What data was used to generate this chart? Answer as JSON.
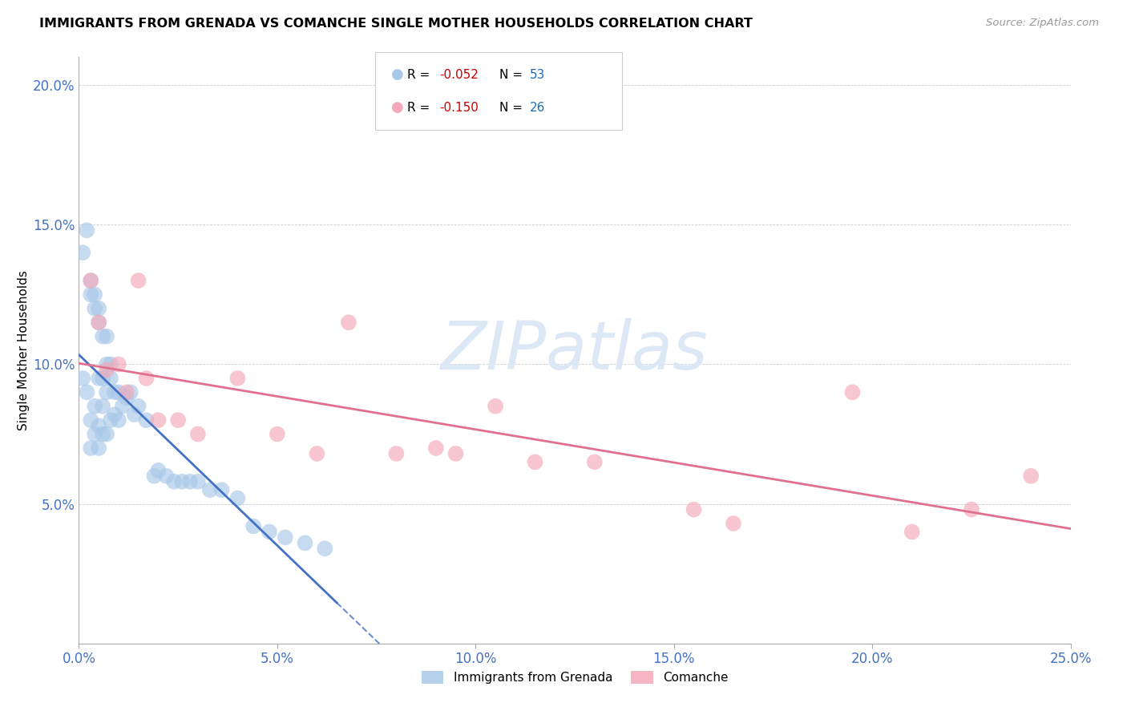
{
  "title": "IMMIGRANTS FROM GRENADA VS COMANCHE SINGLE MOTHER HOUSEHOLDS CORRELATION CHART",
  "source": "Source: ZipAtlas.com",
  "ylabel": "Single Mother Households",
  "xlim": [
    0.0,
    0.25
  ],
  "ylim": [
    0.0,
    0.21
  ],
  "xtick_vals": [
    0.0,
    0.05,
    0.1,
    0.15,
    0.2,
    0.25
  ],
  "ytick_vals": [
    0.05,
    0.1,
    0.15,
    0.2
  ],
  "ytick_labels": [
    "5.0%",
    "10.0%",
    "15.0%",
    "20.0%"
  ],
  "xtick_labels": [
    "0.0%",
    "5.0%",
    "10.0%",
    "15.0%",
    "20.0%",
    "25.0%"
  ],
  "color_blue": "#a8c8e8",
  "color_pink": "#f4a8b8",
  "color_trend_blue": "#4472c4",
  "color_trend_pink": "#e07090",
  "color_axis": "#4472c4",
  "color_r": "#cc0000",
  "color_n": "#1a6fbd",
  "watermark_color": "#dce8f5",
  "grenada_x": [
    0.001,
    0.001,
    0.002,
    0.002,
    0.003,
    0.003,
    0.003,
    0.003,
    0.004,
    0.004,
    0.004,
    0.004,
    0.005,
    0.005,
    0.005,
    0.005,
    0.005,
    0.006,
    0.006,
    0.006,
    0.006,
    0.007,
    0.007,
    0.007,
    0.007,
    0.008,
    0.008,
    0.008,
    0.009,
    0.009,
    0.01,
    0.01,
    0.011,
    0.012,
    0.013,
    0.014,
    0.015,
    0.017,
    0.019,
    0.02,
    0.022,
    0.024,
    0.026,
    0.028,
    0.03,
    0.033,
    0.036,
    0.04,
    0.044,
    0.048,
    0.052,
    0.057,
    0.062
  ],
  "grenada_y": [
    0.14,
    0.095,
    0.148,
    0.09,
    0.13,
    0.125,
    0.08,
    0.07,
    0.125,
    0.12,
    0.085,
    0.075,
    0.12,
    0.115,
    0.095,
    0.078,
    0.07,
    0.11,
    0.095,
    0.085,
    0.075,
    0.11,
    0.1,
    0.09,
    0.075,
    0.1,
    0.095,
    0.08,
    0.09,
    0.082,
    0.09,
    0.08,
    0.085,
    0.088,
    0.09,
    0.082,
    0.085,
    0.08,
    0.06,
    0.062,
    0.06,
    0.058,
    0.058,
    0.058,
    0.058,
    0.055,
    0.055,
    0.052,
    0.042,
    0.04,
    0.038,
    0.036,
    0.034
  ],
  "comanche_x": [
    0.003,
    0.005,
    0.007,
    0.01,
    0.012,
    0.015,
    0.017,
    0.02,
    0.025,
    0.03,
    0.04,
    0.05,
    0.06,
    0.068,
    0.08,
    0.09,
    0.095,
    0.105,
    0.115,
    0.13,
    0.155,
    0.165,
    0.195,
    0.21,
    0.225,
    0.24
  ],
  "comanche_y": [
    0.13,
    0.115,
    0.098,
    0.1,
    0.09,
    0.13,
    0.095,
    0.08,
    0.08,
    0.075,
    0.095,
    0.075,
    0.068,
    0.115,
    0.068,
    0.07,
    0.068,
    0.085,
    0.065,
    0.065,
    0.048,
    0.043,
    0.09,
    0.04,
    0.048,
    0.06
  ]
}
